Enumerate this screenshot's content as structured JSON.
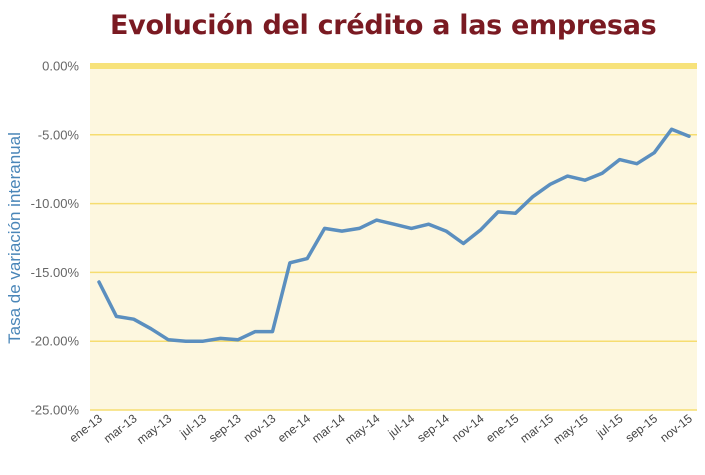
{
  "chart_data": {
    "type": "line",
    "title": "Evolución del crédito a las empresas",
    "xlabel": "",
    "ylabel": "Tasa de variación interanual",
    "ylim": [
      -25,
      0
    ],
    "yticks": [
      "0.00%",
      "-5.00%",
      "-10.00%",
      "-15.00%",
      "-20.00%",
      "-25.00%"
    ],
    "ytick_values": [
      0,
      -5,
      -10,
      -15,
      -20,
      -25
    ],
    "x_tick_labels": [
      "ene-13",
      "mar-13",
      "may-13",
      "jul-13",
      "sep-13",
      "nov-13",
      "ene-14",
      "mar-14",
      "may-14",
      "jul-14",
      "sep-14",
      "nov-14",
      "ene-15",
      "mar-15",
      "may-15",
      "jul-15",
      "sep-15",
      "nov-15"
    ],
    "x": [
      "ene-13",
      "feb-13",
      "mar-13",
      "abr-13",
      "may-13",
      "jun-13",
      "jul-13",
      "ago-13",
      "sep-13",
      "oct-13",
      "nov-13",
      "dic-13",
      "ene-14",
      "feb-14",
      "mar-14",
      "abr-14",
      "may-14",
      "jun-14",
      "jul-14",
      "ago-14",
      "sep-14",
      "oct-14",
      "nov-14",
      "dic-14",
      "ene-15",
      "feb-15",
      "mar-15",
      "abr-15",
      "may-15",
      "jun-15",
      "jul-15",
      "ago-15",
      "sep-15",
      "oct-15",
      "nov-15"
    ],
    "values": [
      -15.7,
      -18.2,
      -18.4,
      -19.1,
      -19.9,
      -20.0,
      -20.0,
      -19.8,
      -19.9,
      -19.3,
      -19.3,
      -14.3,
      -14.0,
      -11.8,
      -12.0,
      -11.8,
      -11.2,
      -11.5,
      -11.8,
      -11.5,
      -12.0,
      -12.9,
      -11.9,
      -10.6,
      -10.7,
      -9.5,
      -8.6,
      -8.0,
      -8.3,
      -7.8,
      -6.8,
      -7.1,
      -6.3,
      -4.6,
      -5.1
    ],
    "grid": true,
    "colors": {
      "line": "#5b8fbf",
      "band": "#fdf7df",
      "gridline": "#f6dd70",
      "zero_line": "#f7e27a",
      "title": "#7a1a22"
    }
  }
}
